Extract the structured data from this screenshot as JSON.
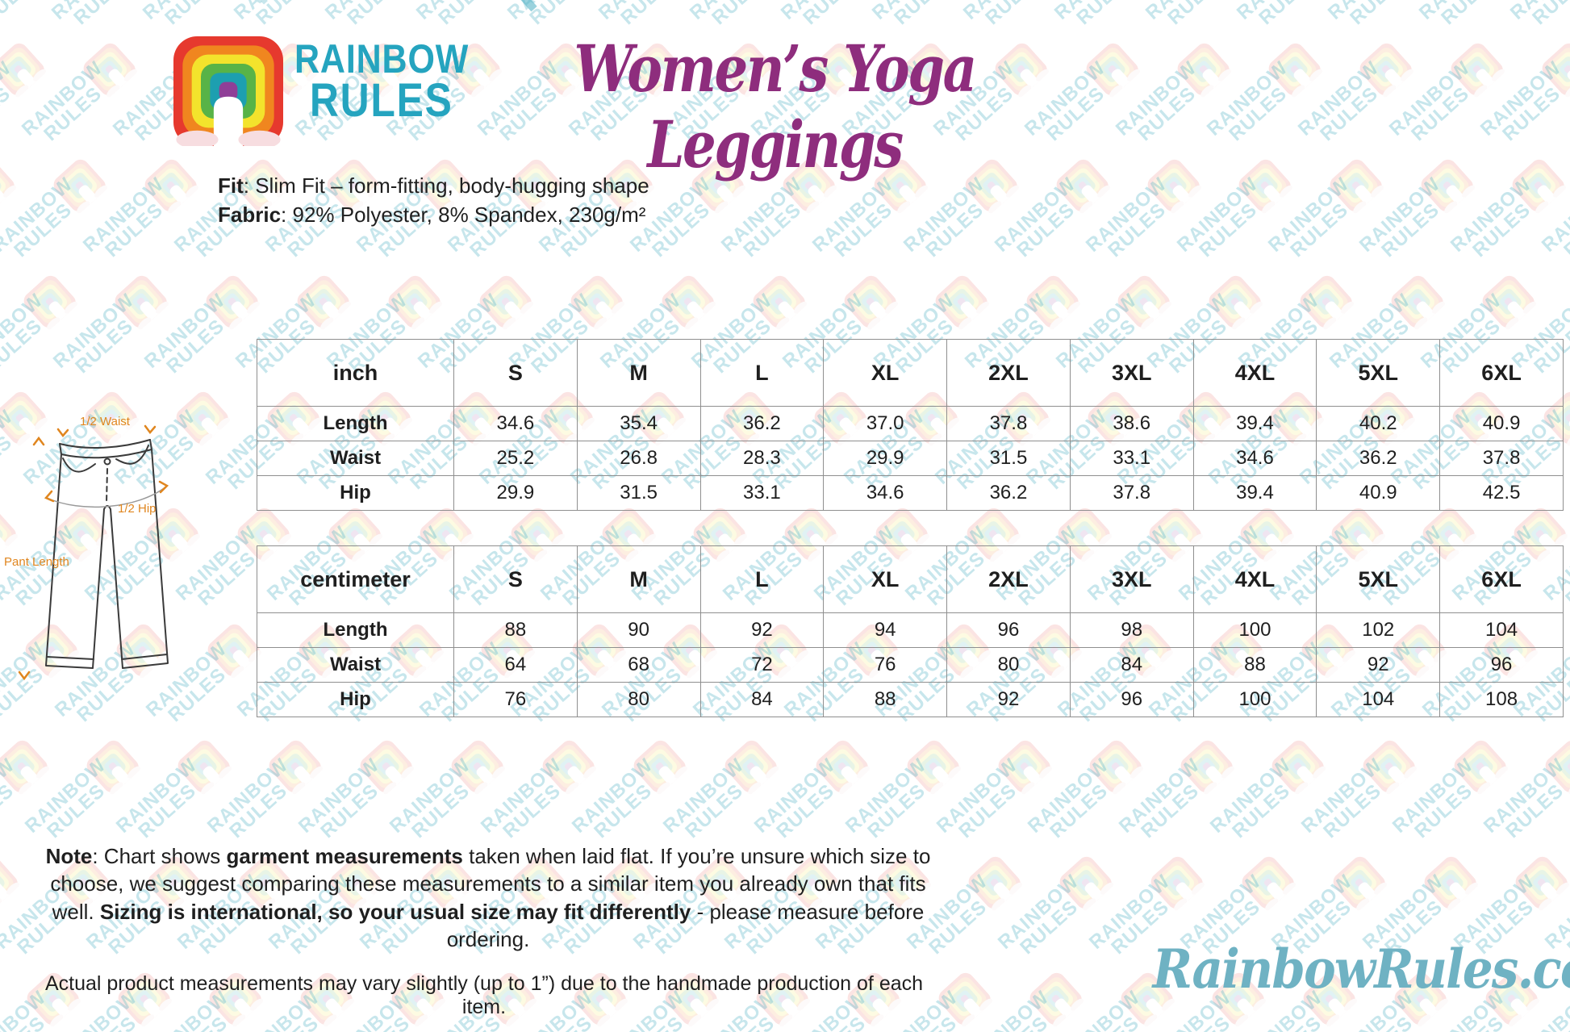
{
  "brand": {
    "line1": "RAINBOW",
    "line2": "RULES"
  },
  "header": {
    "title": "Women’s Yoga Leggings"
  },
  "product": {
    "fit_label": "Fit",
    "fit_value": ": Slim Fit – form-fitting, body-hugging shape",
    "fabric_label": "Fabric",
    "fabric_value": ": 92% Polyester, 8% Spandex, 230g/m²"
  },
  "diagram": {
    "waist_label": "1/2 Waist",
    "hip_label": "1/2 Hip",
    "length_label": "Pant Length"
  },
  "tables": [
    {
      "unit_header": "inch",
      "sizes": [
        "S",
        "M",
        "L",
        "XL",
        "2XL",
        "3XL",
        "4XL",
        "5XL",
        "6XL"
      ],
      "rows": [
        {
          "label": "Length",
          "values": [
            "34.6",
            "35.4",
            "36.2",
            "37.0",
            "37.8",
            "38.6",
            "39.4",
            "40.2",
            "40.9"
          ]
        },
        {
          "label": "Waist",
          "values": [
            "25.2",
            "26.8",
            "28.3",
            "29.9",
            "31.5",
            "33.1",
            "34.6",
            "36.2",
            "37.8"
          ]
        },
        {
          "label": "Hip",
          "values": [
            "29.9",
            "31.5",
            "33.1",
            "34.6",
            "36.2",
            "37.8",
            "39.4",
            "40.9",
            "42.5"
          ]
        }
      ]
    },
    {
      "unit_header": "centimeter",
      "sizes": [
        "S",
        "M",
        "L",
        "XL",
        "2XL",
        "3XL",
        "4XL",
        "5XL",
        "6XL"
      ],
      "rows": [
        {
          "label": "Length",
          "values": [
            "88",
            "90",
            "92",
            "94",
            "96",
            "98",
            "100",
            "102",
            "104"
          ]
        },
        {
          "label": "Waist",
          "values": [
            "64",
            "68",
            "72",
            "76",
            "80",
            "84",
            "88",
            "92",
            "96"
          ]
        },
        {
          "label": "Hip",
          "values": [
            "76",
            "80",
            "84",
            "88",
            "92",
            "96",
            "100",
            "104",
            "108"
          ]
        }
      ]
    }
  ],
  "notes": {
    "main_segments": [
      {
        "text": "Note",
        "bold": true
      },
      {
        "text": ": Chart shows ",
        "bold": false
      },
      {
        "text": "garment measurements",
        "bold": true
      },
      {
        "text": " taken when laid flat. If you’re unsure which size to choose, we suggest comparing these measurements to a similar item you already own that fits well. ",
        "bold": false
      },
      {
        "text": "Sizing is international, so your usual size may fit differently",
        "bold": true
      },
      {
        "text": " - please measure before ordering.",
        "bold": false
      }
    ],
    "variance": "Actual product measurements may vary slightly (up to 1”) due to the handmade production of each item."
  },
  "footer": {
    "site": "RainbowRules.com"
  },
  "watermark": {
    "line1": "RAINBOW",
    "line2": "RULES"
  },
  "colors": {
    "brand_teal": "#25a4bf",
    "title_purple": "#8e2d7d",
    "diagram_orange": "#e0861f",
    "site_teal": "#6fb2c3",
    "table_border": "#8f8f8f"
  }
}
